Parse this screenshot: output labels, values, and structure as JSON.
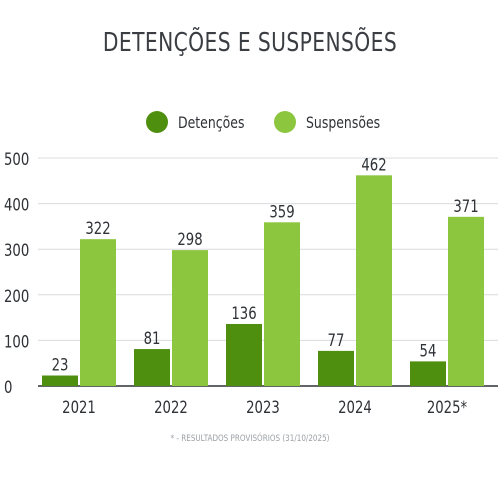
{
  "chart_data": {
    "type": "bar",
    "title": "DETENÇÕES E SUSPENSÕES",
    "categories": [
      "2021",
      "2022",
      "2023",
      "2024",
      "2025*"
    ],
    "series": [
      {
        "name": "Detenções",
        "values": [
          23,
          81,
          136,
          77,
          54
        ],
        "color": "#4e8f10"
      },
      {
        "name": "Suspensões",
        "values": [
          322,
          298,
          359,
          462,
          371
        ],
        "color": "#8cc63f"
      }
    ],
    "ylim": [
      0,
      500
    ],
    "yticks": [
      "0",
      "100",
      "200",
      "300",
      "400",
      "500"
    ],
    "grid": true,
    "legend_position": "top-center",
    "footnote": "* - RESULTADOS PROVISÓRIOS (31/10/2025)"
  }
}
